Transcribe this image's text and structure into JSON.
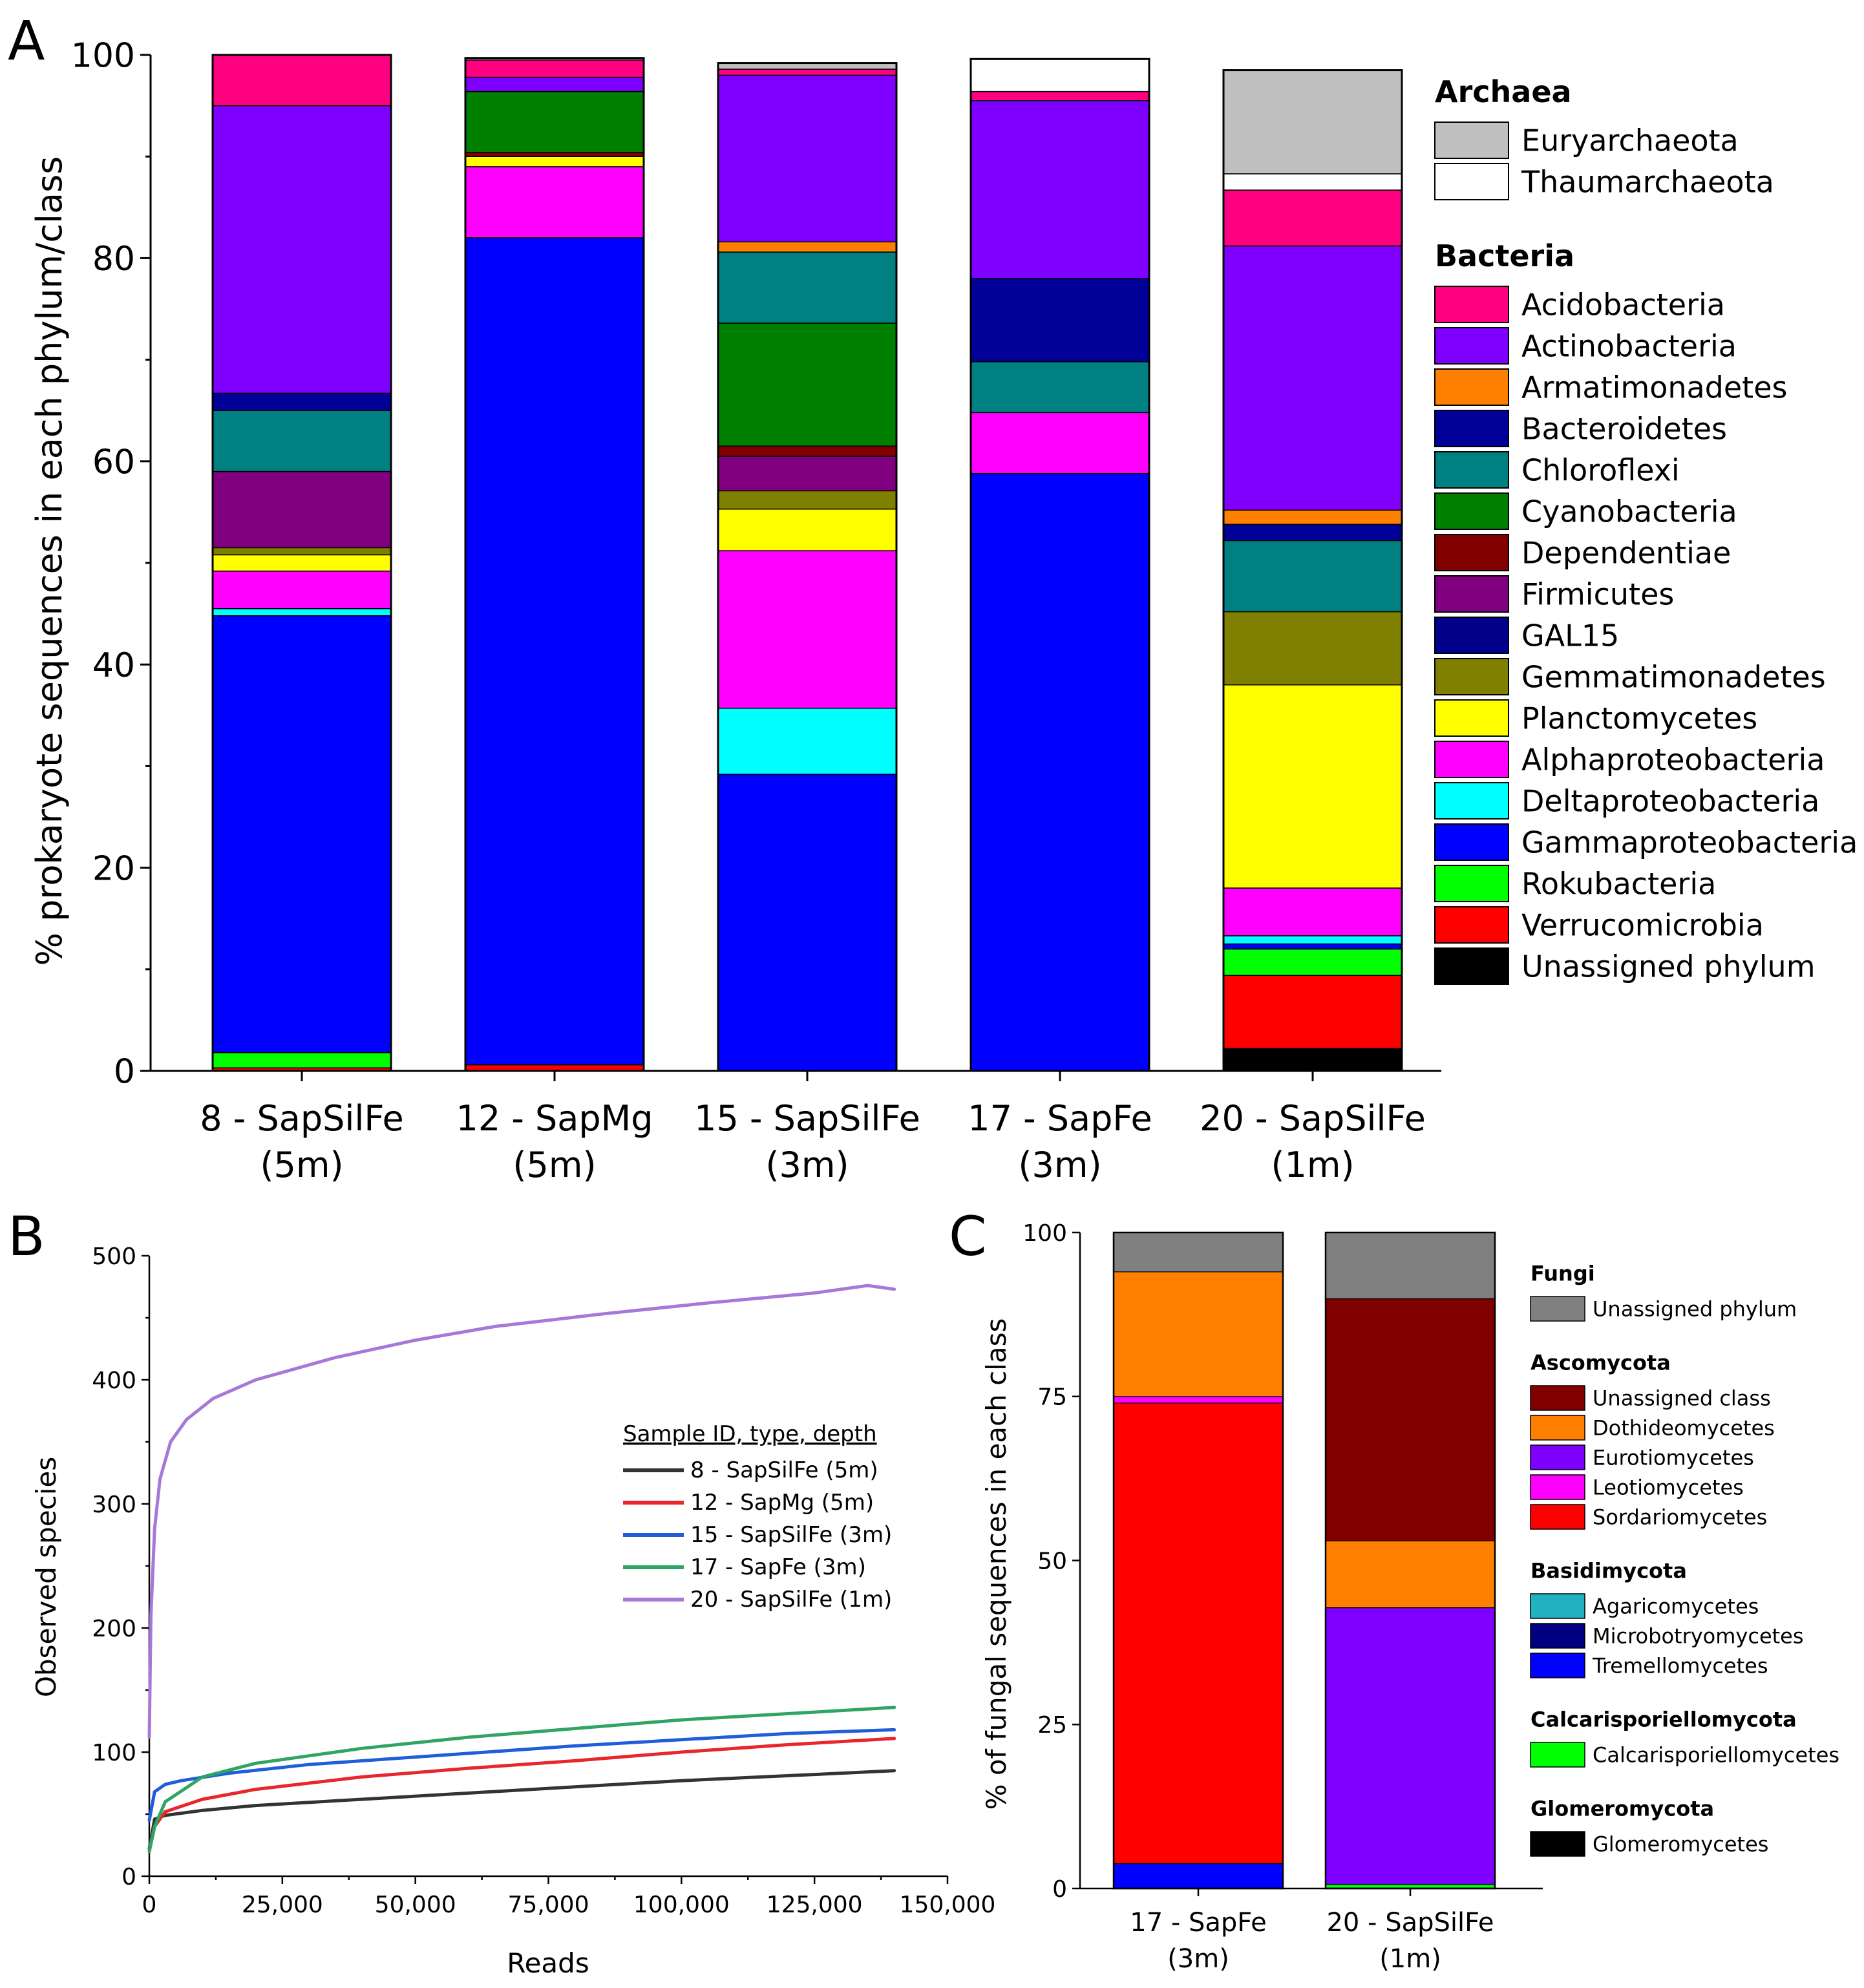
{
  "panel_letters": {
    "a": "A",
    "b": "B",
    "c": "C"
  },
  "chart_data": [
    {
      "id": "A",
      "type": "bar",
      "stacked": true,
      "ylabel": "% prokaryote sequences in each phylum/class",
      "ylim": [
        0,
        100
      ],
      "yticks": [
        0,
        20,
        40,
        60,
        80,
        100
      ],
      "categories": [
        [
          "8 - SapSilFe",
          "(5m)"
        ],
        [
          "12 - SapMg",
          "(5m)"
        ],
        [
          "15 - SapSilFe",
          "(3m)"
        ],
        [
          "17 - SapFe",
          "(3m)"
        ],
        [
          "20 - SapSilFe",
          "(1m)"
        ]
      ],
      "legend_groups": [
        {
          "title": "Archaea",
          "items": [
            "Euryarchaeota",
            "Thaumarchaeota"
          ]
        },
        {
          "title": "Bacteria",
          "items": [
            "Acidobacteria",
            "Actinobacteria",
            "Armatimonadetes",
            "Bacteroidetes",
            "Chloroflexi",
            "Cyanobacteria",
            "Dependentiae",
            "Firmicutes",
            "GAL15",
            "Gemmatimonadetes",
            "Planctomycetes",
            "Alphaproteobacteria",
            "Deltaproteobacteria",
            "Gammaproteobacteria",
            "Rokubacteria",
            "Verrucomicrobia",
            "Unassigned phylum"
          ]
        }
      ],
      "series": [
        {
          "name": "Unassigned phylum",
          "color": "#000000",
          "values": [
            0,
            0,
            0,
            0,
            2.2
          ]
        },
        {
          "name": "Verrucomicrobia",
          "color": "#ff0000",
          "values": [
            0.3,
            0.6,
            0,
            0,
            7.2
          ]
        },
        {
          "name": "Rokubacteria",
          "color": "#00ff00",
          "values": [
            1.5,
            0,
            0,
            0,
            2.6
          ]
        },
        {
          "name": "Gammaproteobacteria",
          "color": "#0000ff",
          "values": [
            43.0,
            81.4,
            29.2,
            58.8,
            0.5
          ]
        },
        {
          "name": "Deltaproteobacteria",
          "color": "#00ffff",
          "values": [
            0.7,
            0,
            6.5,
            0,
            0.8
          ]
        },
        {
          "name": "Alphaproteobacteria",
          "color": "#ff00ff",
          "values": [
            3.7,
            7.0,
            15.5,
            6.0,
            4.7
          ]
        },
        {
          "name": "Planctomycetes",
          "color": "#ffff00",
          "values": [
            1.6,
            1.0,
            4.1,
            0,
            20.0
          ]
        },
        {
          "name": "Gemmatimonadetes",
          "color": "#808000",
          "values": [
            0.7,
            0,
            1.8,
            0,
            7.2
          ]
        },
        {
          "name": "GAL15",
          "color": "#00008b",
          "values": [
            0,
            0,
            0,
            0,
            0
          ]
        },
        {
          "name": "Firmicutes",
          "color": "#800080",
          "values": [
            7.5,
            0,
            3.4,
            0,
            0
          ]
        },
        {
          "name": "Dependentiae",
          "color": "#800000",
          "values": [
            0,
            0.4,
            1.0,
            0,
            0
          ]
        },
        {
          "name": "Cyanobacteria",
          "color": "#008000",
          "values": [
            0,
            6.0,
            12.1,
            0,
            0
          ]
        },
        {
          "name": "Chloroflexi",
          "color": "#008080",
          "values": [
            6.0,
            0,
            7.0,
            5.0,
            7.0
          ]
        },
        {
          "name": "Bacteroidetes",
          "color": "#000099",
          "values": [
            1.7,
            0,
            0,
            8.2,
            1.6
          ]
        },
        {
          "name": "Armatimonadetes",
          "color": "#ff8000",
          "values": [
            0,
            0,
            1.0,
            0,
            1.4
          ]
        },
        {
          "name": "Actinobacteria",
          "color": "#8000ff",
          "values": [
            28.3,
            1.4,
            16.4,
            17.5,
            26.0
          ]
        },
        {
          "name": "Acidobacteria",
          "color": "#ff0080",
          "values": [
            5.0,
            1.7,
            0.6,
            0.9,
            5.5
          ]
        },
        {
          "name": "Thaumarchaeota",
          "color": "#ffffff",
          "values": [
            0,
            0,
            0,
            3.2,
            1.6
          ]
        },
        {
          "name": "Euryarchaeota",
          "color": "#c0c0c0",
          "values": [
            0,
            0.2,
            0.6,
            0,
            10.2
          ]
        }
      ]
    },
    {
      "id": "B",
      "type": "line",
      "xlabel": "Reads",
      "ylabel": "Observed species",
      "xlim": [
        0,
        150000
      ],
      "ylim": [
        0,
        500
      ],
      "xticks": [
        "0",
        "25,000",
        "50,000",
        "75,000",
        "100,000",
        "125,000",
        "150,000"
      ],
      "yticks": [
        0,
        100,
        200,
        300,
        400,
        500
      ],
      "legend_title": "Sample ID, type, depth",
      "series": [
        {
          "name": "8 - SapSilFe (5m)",
          "color": "#333333",
          "x": [
            0,
            1000,
            3000,
            10000,
            20000,
            40000,
            60000,
            80000,
            100000,
            120000,
            140000
          ],
          "y": [
            22,
            46,
            49,
            53,
            57,
            62,
            67,
            72,
            77,
            81,
            85
          ]
        },
        {
          "name": "12 - SapMg (5m)",
          "color": "#e8262b",
          "x": [
            0,
            1000,
            3000,
            10000,
            20000,
            40000,
            60000,
            80000,
            100000,
            120000,
            140000
          ],
          "y": [
            20,
            40,
            52,
            62,
            70,
            80,
            87,
            93,
            100,
            106,
            111
          ]
        },
        {
          "name": "15 - SapSilFe (3m)",
          "color": "#1f5ddb",
          "x": [
            0,
            1000,
            3000,
            6000,
            15000,
            30000,
            60000,
            80000,
            100000,
            120000,
            140000
          ],
          "y": [
            45,
            68,
            74,
            77,
            83,
            90,
            99,
            105,
            110,
            115,
            118
          ]
        },
        {
          "name": "17 - SapFe (3m)",
          "color": "#2ea563",
          "x": [
            0,
            1000,
            3000,
            10000,
            20000,
            40000,
            60000,
            80000,
            100000,
            120000,
            140000
          ],
          "y": [
            20,
            40,
            60,
            80,
            91,
            103,
            112,
            119,
            126,
            131,
            136
          ]
        },
        {
          "name": "20 - SapSilFe (1m)",
          "color": "#a678d8",
          "x": [
            0,
            300,
            1000,
            2000,
            4000,
            7000,
            12000,
            20000,
            35000,
            50000,
            65000,
            85000,
            105000,
            125000,
            135000,
            140000
          ],
          "y": [
            112,
            210,
            280,
            320,
            350,
            368,
            385,
            400,
            418,
            432,
            443,
            453,
            462,
            470,
            476,
            473
          ]
        }
      ]
    },
    {
      "id": "C",
      "type": "bar",
      "stacked": true,
      "ylabel": "% of fungal sequences in each class",
      "ylim": [
        0,
        100
      ],
      "yticks": [
        0,
        25,
        50,
        75,
        100
      ],
      "categories": [
        [
          "17 - SapFe",
          "(3m)"
        ],
        [
          "20 - SapSilFe",
          "(1m)"
        ]
      ],
      "legend_groups": [
        {
          "title": "Fungi",
          "items": [
            "Unassigned phylum"
          ]
        },
        {
          "title": "Ascomycota",
          "items": [
            "Unassigned class",
            "Dothideomycetes",
            "Eurotiomycetes",
            "Leotiomycetes",
            "Sordariomycetes"
          ]
        },
        {
          "title": "Basidimycota",
          "items": [
            "Agaricomycetes",
            "Microbotryomycetes",
            "Tremellomycetes"
          ]
        },
        {
          "title": "Calcarisporiellomycota",
          "items": [
            "Calcarisporiellomycetes"
          ]
        },
        {
          "title": "Glomeromycota",
          "items": [
            "Glomeromycetes"
          ]
        }
      ],
      "series": [
        {
          "name": "Glomeromycetes",
          "color": "#000000",
          "values": [
            0,
            0
          ]
        },
        {
          "name": "Calcarisporiellomycetes",
          "color": "#00ff00",
          "values": [
            0,
            0.6
          ]
        },
        {
          "name": "Tremellomycetes",
          "color": "#0000ff",
          "values": [
            3.8,
            0
          ]
        },
        {
          "name": "Microbotryomycetes",
          "color": "#000080",
          "values": [
            0,
            0
          ]
        },
        {
          "name": "Agaricomycetes",
          "color": "#20b2c0",
          "values": [
            0,
            0
          ]
        },
        {
          "name": "Sordariomycetes",
          "color": "#ff0000",
          "values": [
            70.2,
            0
          ]
        },
        {
          "name": "Leotiomycetes",
          "color": "#ff00ff",
          "values": [
            1.0,
            0
          ]
        },
        {
          "name": "Eurotiomycetes",
          "color": "#8000ff",
          "values": [
            0,
            42.2
          ]
        },
        {
          "name": "Dothideomycetes",
          "color": "#ff8000",
          "values": [
            19.0,
            10.2
          ]
        },
        {
          "name": "Unassigned class",
          "color": "#800000",
          "values": [
            0,
            36.9
          ]
        },
        {
          "name": "Unassigned phylum",
          "color": "#808080",
          "values": [
            6.0,
            10.1
          ]
        }
      ]
    }
  ]
}
